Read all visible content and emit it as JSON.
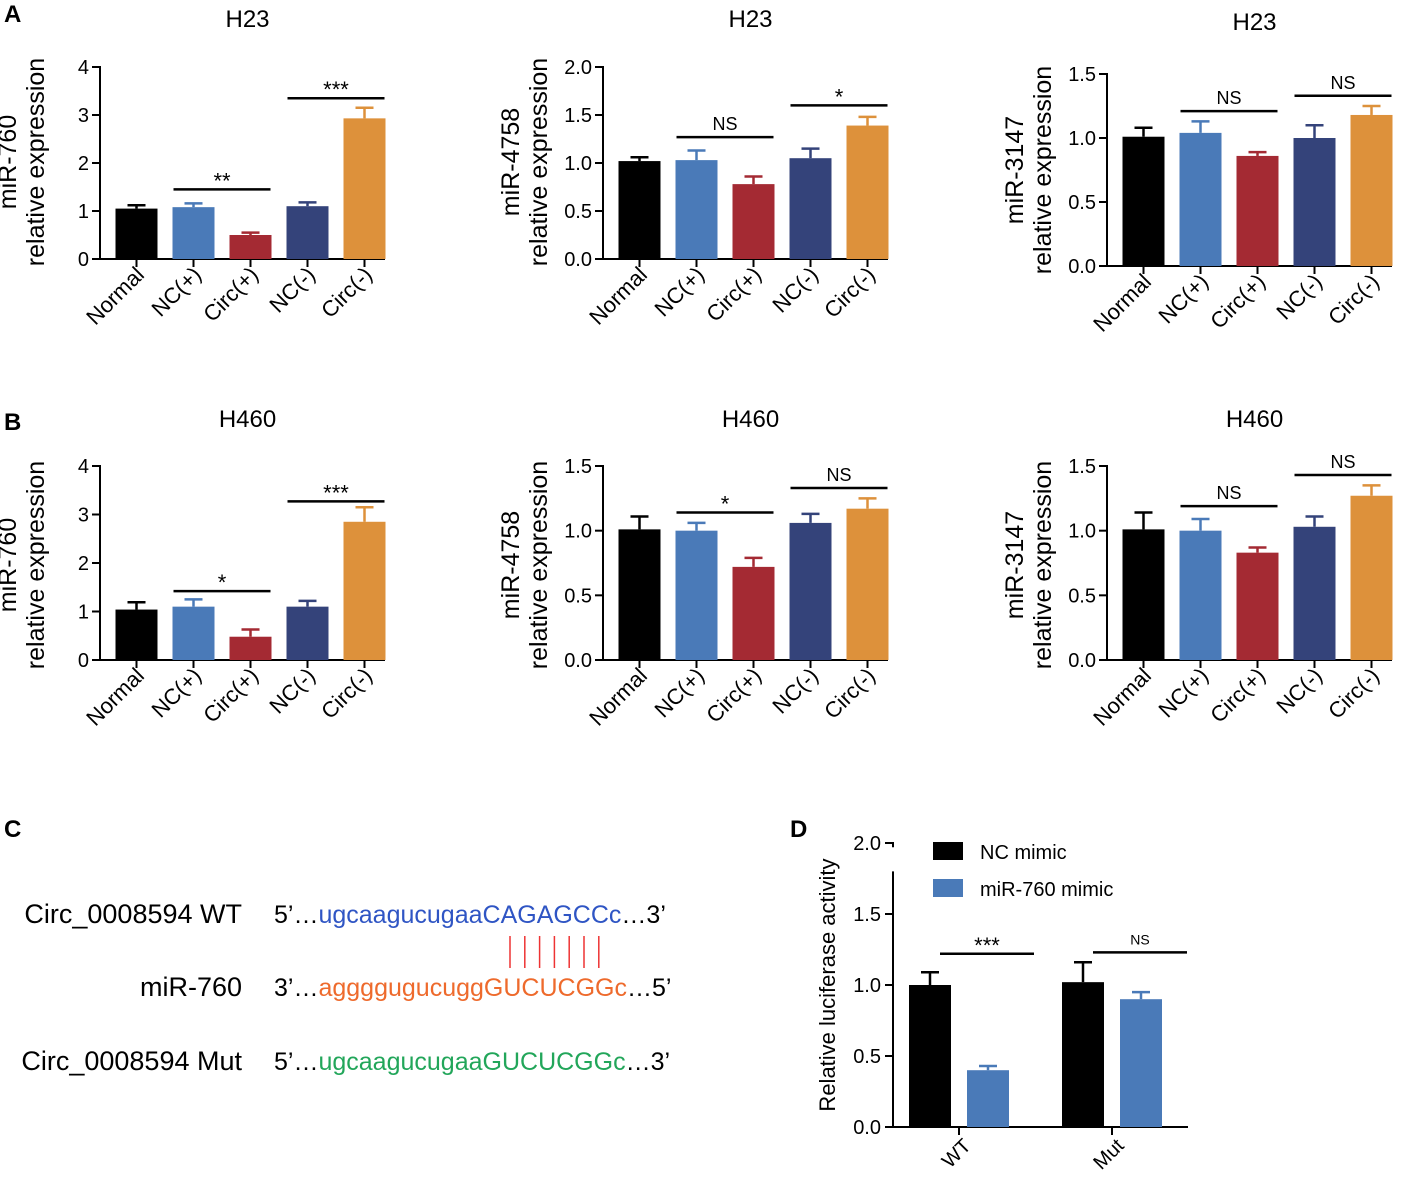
{
  "panel_letters": [
    "A",
    "B",
    "C",
    "D"
  ],
  "colors": {
    "Normal": "#000000",
    "NC(+)": "#4a7ab8",
    "Circ(+)": "#a42a33",
    "NC(-)": "#34437a",
    "Circ(-)": "#dd913b",
    "nc_mimic": "#000000",
    "mir760_mimic": "#4a7ab8",
    "seq_wt": "#2f55c4",
    "seq_mir": "#ee6a2c",
    "seq_mut": "#22a65a",
    "pairing": "#ee3333"
  },
  "chart_data": [
    {
      "id": "A1",
      "type": "bar",
      "title": "H23",
      "ylabel_line1": "miR-760",
      "ylabel_line2": "relative  expression",
      "categories": [
        "Normal",
        "NC(+)",
        "Circ(+)",
        "NC(-)",
        "Circ(-)"
      ],
      "values": [
        1.05,
        1.08,
        0.5,
        1.1,
        2.93
      ],
      "errors": [
        0.07,
        0.08,
        0.05,
        0.08,
        0.22
      ],
      "ylim": [
        0,
        4
      ],
      "yticks": [
        "0",
        "1",
        "2",
        "3",
        "4"
      ],
      "annotations": [
        {
          "label": "**",
          "from": 1,
          "to": 2,
          "y": 1.45
        },
        {
          "label": "***",
          "from": 3,
          "to": 4,
          "y": 3.35
        }
      ]
    },
    {
      "id": "A2",
      "type": "bar",
      "title": "H23",
      "ylabel_line1": "miR-4758",
      "ylabel_line2": "relative  expression",
      "categories": [
        "Normal",
        "NC(+)",
        "Circ(+)",
        "NC(-)",
        "Circ(-)"
      ],
      "values": [
        1.02,
        1.03,
        0.78,
        1.05,
        1.39
      ],
      "errors": [
        0.04,
        0.1,
        0.08,
        0.1,
        0.09
      ],
      "ylim": [
        0,
        2
      ],
      "yticks": [
        "0.0",
        "0.5",
        "1.0",
        "1.5",
        "2.0"
      ],
      "annotations": [
        {
          "label": "NS",
          "from": 1,
          "to": 2,
          "y": 1.27
        },
        {
          "label": "*",
          "from": 3,
          "to": 4,
          "y": 1.6
        }
      ]
    },
    {
      "id": "A3",
      "type": "bar",
      "title": "H23",
      "ylabel_line1": "miR-3147",
      "ylabel_line2": "relative  expression",
      "categories": [
        "Normal",
        "NC(+)",
        "Circ(+)",
        "NC(-)",
        "Circ(-)"
      ],
      "values": [
        1.01,
        1.04,
        0.86,
        1.0,
        1.18
      ],
      "errors": [
        0.07,
        0.09,
        0.03,
        0.1,
        0.07
      ],
      "ylim": [
        0,
        1.5
      ],
      "yticks": [
        "0.0",
        "0.5",
        "1.0",
        "1.5"
      ],
      "annotations": [
        {
          "label": "NS",
          "from": 1,
          "to": 2,
          "y": 1.21
        },
        {
          "label": "NS",
          "from": 3,
          "to": 4,
          "y": 1.33
        }
      ]
    },
    {
      "id": "B1",
      "type": "bar",
      "title": "H460",
      "ylabel_line1": "miR-760",
      "ylabel_line2": "relative  expression",
      "categories": [
        "Normal",
        "NC(+)",
        "Circ(+)",
        "NC(-)",
        "Circ(-)"
      ],
      "values": [
        1.04,
        1.1,
        0.48,
        1.1,
        2.85
      ],
      "errors": [
        0.15,
        0.15,
        0.15,
        0.12,
        0.3
      ],
      "ylim": [
        0,
        4
      ],
      "yticks": [
        "0",
        "1",
        "2",
        "3",
        "4"
      ],
      "annotations": [
        {
          "label": "*",
          "from": 1,
          "to": 2,
          "y": 1.42
        },
        {
          "label": "***",
          "from": 3,
          "to": 4,
          "y": 3.27
        }
      ]
    },
    {
      "id": "B2",
      "type": "bar",
      "title": "H460",
      "ylabel_line1": "miR-4758",
      "ylabel_line2": "relative  expression",
      "categories": [
        "Normal",
        "NC(+)",
        "Circ(+)",
        "NC(-)",
        "Circ(-)"
      ],
      "values": [
        1.01,
        1.0,
        0.72,
        1.06,
        1.17
      ],
      "errors": [
        0.1,
        0.06,
        0.07,
        0.07,
        0.08
      ],
      "ylim": [
        0,
        1.5
      ],
      "yticks": [
        "0.0",
        "0.5",
        "1.0",
        "1.5"
      ],
      "annotations": [
        {
          "label": "*",
          "from": 1,
          "to": 2,
          "y": 1.14
        },
        {
          "label": "NS",
          "from": 3,
          "to": 4,
          "y": 1.33
        }
      ]
    },
    {
      "id": "B3",
      "type": "bar",
      "title": "H460",
      "ylabel_line1": "miR-3147",
      "ylabel_line2": "relative  expression",
      "categories": [
        "Normal",
        "NC(+)",
        "Circ(+)",
        "NC(-)",
        "Circ(-)"
      ],
      "values": [
        1.01,
        1.0,
        0.83,
        1.03,
        1.27
      ],
      "errors": [
        0.13,
        0.09,
        0.04,
        0.08,
        0.08
      ],
      "ylim": [
        0,
        1.5
      ],
      "yticks": [
        "0.0",
        "0.5",
        "1.0",
        "1.5"
      ],
      "annotations": [
        {
          "label": "NS",
          "from": 1,
          "to": 2,
          "y": 1.19
        },
        {
          "label": "NS",
          "from": 3,
          "to": 4,
          "y": 1.43
        }
      ]
    },
    {
      "id": "D",
      "type": "grouped-bar",
      "ylabel": "Relative luciferase activity",
      "categories": [
        "WT",
        "Mut"
      ],
      "series": [
        {
          "name": "NC mimic",
          "values": [
            1.0,
            1.02
          ],
          "errors": [
            0.09,
            0.14
          ]
        },
        {
          "name": "miR-760 mimic",
          "values": [
            0.4,
            0.9
          ],
          "errors": [
            0.03,
            0.05
          ]
        }
      ],
      "ylim": [
        0,
        2.0
      ],
      "yticks": [
        "0.0",
        "0.5",
        "1.0",
        "1.5",
        "2.0"
      ],
      "legend_position": "top",
      "annotations": [
        {
          "label": "***",
          "category": 0,
          "y": 1.22
        },
        {
          "label": "NS",
          "category": 1,
          "y": 1.23
        }
      ]
    }
  ],
  "panel_c": {
    "rows": [
      {
        "label": "Circ_0008594 WT",
        "prefix": "5’…",
        "lower": "ugcaagucugaa",
        "upper": "CAGAGCCc",
        "suffix": "…3’"
      },
      {
        "label": "miR-760",
        "prefix": "3’…",
        "lower": "aggggugucugg",
        "upper": "GUCUCGGc",
        "suffix": "…5’"
      },
      {
        "label": "Circ_0008594 Mut",
        "prefix": "5’…",
        "lower": "ugcaagucugaa",
        "upper": "GUCUCGGc",
        "suffix": "…3’"
      }
    ],
    "pairing_count": 7
  }
}
